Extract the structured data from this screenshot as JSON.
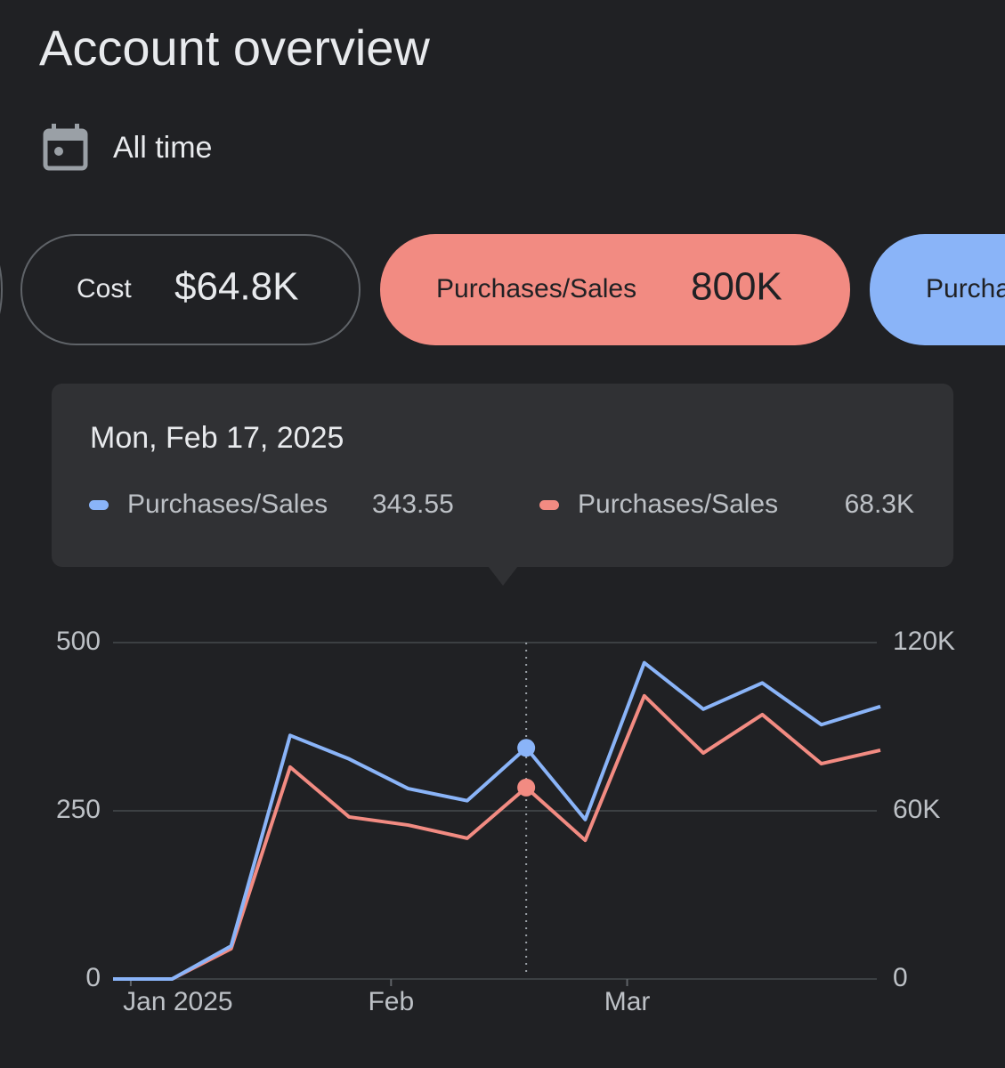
{
  "header": {
    "title": "Account overview",
    "date_range": "All time"
  },
  "chips": [
    {
      "label": "Cost",
      "value": "$64.8K"
    },
    {
      "label": "Purchases/Sales",
      "value": "800K"
    },
    {
      "label": "Purchases/Sales"
    }
  ],
  "tooltip": {
    "date": "Mon, Feb 17, 2025",
    "items": [
      {
        "label": "Purchases/Sales",
        "value": "343.55"
      },
      {
        "label": "Purchases/Sales",
        "value": "68.3K"
      }
    ]
  },
  "chart_data": {
    "type": "line",
    "categories": [
      null,
      null,
      null,
      null,
      null,
      null,
      null,
      null,
      null,
      null,
      null,
      null,
      null,
      null
    ],
    "xlim": [
      0,
      13
    ],
    "xticks": [
      {
        "value": 0.3,
        "label": "Jan 2025"
      },
      {
        "value": 4.71,
        "label": "Feb"
      },
      {
        "value": 8.71,
        "label": "Mar"
      }
    ],
    "ylim": [
      0,
      500
    ],
    "yticks": [
      0,
      250,
      500
    ],
    "y2lim": [
      0,
      120000
    ],
    "y2ticks": [
      0,
      {
        "value": 60000,
        "label": "60K"
      },
      {
        "value": 120000,
        "label": "120K"
      }
    ],
    "grid": true,
    "series": [
      {
        "name": "Purchases/Sales",
        "color": "#8ab4f8",
        "values": [
          0,
          0,
          49,
          362,
          327,
          283,
          265,
          343.55,
          237,
          470,
          401,
          440,
          378,
          405
        ]
      },
      {
        "name": "Purchases/Sales",
        "color": "#f28b82",
        "axis": "y2",
        "values": [
          0,
          0,
          10800,
          75600,
          57800,
          54900,
          50200,
          68300,
          49500,
          101000,
          80600,
          94300,
          76800,
          81600
        ]
      }
    ]
  }
}
